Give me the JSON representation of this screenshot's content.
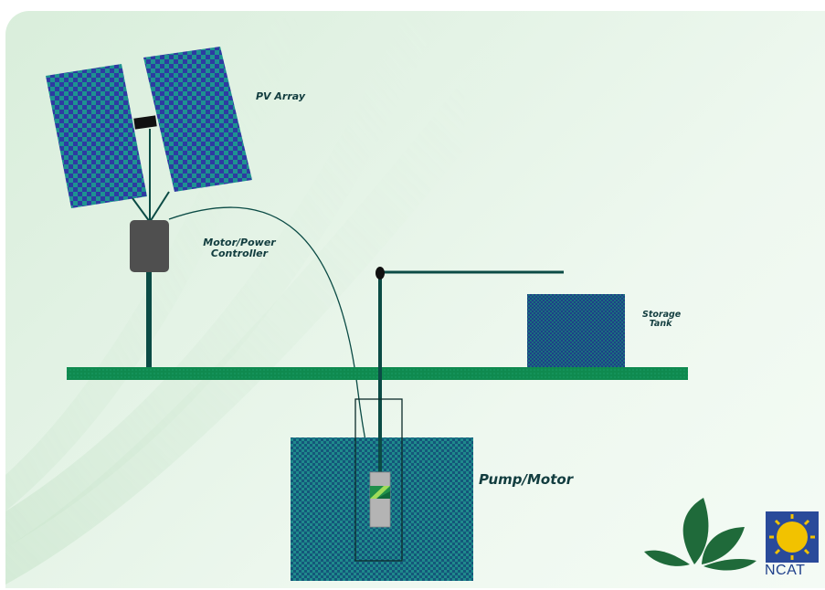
{
  "labels": {
    "pv_array": "PV Array",
    "motor_controller_line1": "Motor/Power",
    "motor_controller_line2": "Controller",
    "storage_tank_line1": "Storage",
    "storage_tank_line2": "Tank",
    "pump_motor": "Pump/Motor"
  },
  "logo": {
    "text": "NCAT"
  },
  "colors": {
    "ground": "#0e8a4f",
    "pipe": "#0b4b45",
    "panel": "#2f3aa0",
    "panel_check": "#1d8f8c",
    "controller": "#4f4f4f",
    "water": "#17667e",
    "pump_body": "#b4b4b4",
    "leaf": "#1f6a3a",
    "sun": "#f2c200",
    "logo_blue": "#2a4a9a"
  }
}
